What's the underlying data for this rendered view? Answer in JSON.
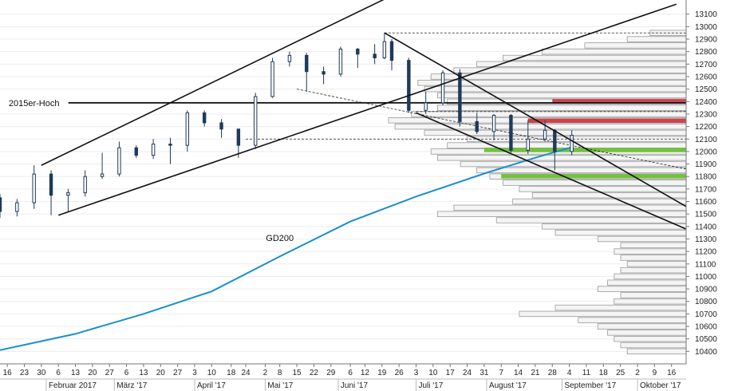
{
  "chart_data": {
    "type": "candlestick",
    "y_axis": {
      "min": 10300,
      "max": 13175,
      "ticks": [
        10400,
        10500,
        10600,
        10700,
        10800,
        10900,
        11000,
        11100,
        11200,
        11300,
        11400,
        11500,
        11600,
        11700,
        11800,
        11900,
        12000,
        12100,
        12200,
        12300,
        12400,
        12500,
        12600,
        12700,
        12800,
        12900,
        13000,
        13100
      ],
      "position": "right"
    },
    "x_axis": {
      "start": "2017-01-13",
      "end": "2017-10-22",
      "day_ticks": [
        {
          "date": "2017-01-16",
          "label": "16"
        },
        {
          "date": "2017-01-23",
          "label": "23"
        },
        {
          "date": "2017-01-30",
          "label": "30"
        },
        {
          "date": "2017-02-06",
          "label": "6"
        },
        {
          "date": "2017-02-13",
          "label": "13"
        },
        {
          "date": "2017-02-20",
          "label": "20"
        },
        {
          "date": "2017-02-27",
          "label": "27"
        },
        {
          "date": "2017-03-06",
          "label": "6"
        },
        {
          "date": "2017-03-13",
          "label": "13"
        },
        {
          "date": "2017-03-20",
          "label": "20"
        },
        {
          "date": "2017-03-27",
          "label": "27"
        },
        {
          "date": "2017-04-03",
          "label": "3"
        },
        {
          "date": "2017-04-10",
          "label": "10"
        },
        {
          "date": "2017-04-18",
          "label": "18"
        },
        {
          "date": "2017-04-24",
          "label": "24"
        },
        {
          "date": "2017-05-02",
          "label": "2"
        },
        {
          "date": "2017-05-08",
          "label": "8"
        },
        {
          "date": "2017-05-15",
          "label": "15"
        },
        {
          "date": "2017-05-22",
          "label": "22"
        },
        {
          "date": "2017-05-29",
          "label": "29"
        },
        {
          "date": "2017-06-06",
          "label": "6"
        },
        {
          "date": "2017-06-12",
          "label": "12"
        },
        {
          "date": "2017-06-19",
          "label": "19"
        },
        {
          "date": "2017-06-26",
          "label": "26"
        },
        {
          "date": "2017-07-03",
          "label": "3"
        },
        {
          "date": "2017-07-10",
          "label": "10"
        },
        {
          "date": "2017-07-17",
          "label": "17"
        },
        {
          "date": "2017-07-24",
          "label": "24"
        },
        {
          "date": "2017-07-31",
          "label": "31"
        },
        {
          "date": "2017-08-07",
          "label": "7"
        },
        {
          "date": "2017-08-14",
          "label": "14"
        },
        {
          "date": "2017-08-21",
          "label": "21"
        },
        {
          "date": "2017-08-28",
          "label": "28"
        },
        {
          "date": "2017-09-04",
          "label": "4"
        },
        {
          "date": "2017-09-11",
          "label": "11"
        },
        {
          "date": "2017-09-18",
          "label": "18"
        },
        {
          "date": "2017-09-25",
          "label": "25"
        },
        {
          "date": "2017-10-02",
          "label": "2"
        },
        {
          "date": "2017-10-09",
          "label": "9"
        },
        {
          "date": "2017-10-16",
          "label": "16"
        }
      ],
      "month_labels": [
        {
          "date": "2017-02-01",
          "label": "Februar 2017"
        },
        {
          "date": "2017-03-01",
          "label": "März '17"
        },
        {
          "date": "2017-04-03",
          "label": "April '17"
        },
        {
          "date": "2017-05-02",
          "label": "Mai '17"
        },
        {
          "date": "2017-06-01",
          "label": "Juni '17"
        },
        {
          "date": "2017-07-03",
          "label": "Juli '17"
        },
        {
          "date": "2017-08-01",
          "label": "August '17"
        },
        {
          "date": "2017-09-01",
          "label": "September '17"
        },
        {
          "date": "2017-10-02",
          "label": "Oktober '17"
        }
      ]
    },
    "grid": "horizontal",
    "candles_weekly_approx": [
      {
        "date": "2017-01-13",
        "o": 11630,
        "h": 11660,
        "l": 11470,
        "c": 11520
      },
      {
        "date": "2017-01-20",
        "o": 11520,
        "h": 11620,
        "l": 11480,
        "c": 11590
      },
      {
        "date": "2017-01-27",
        "o": 11590,
        "h": 11890,
        "l": 11540,
        "c": 11820
      },
      {
        "date": "2017-02-03",
        "o": 11820,
        "h": 11850,
        "l": 11490,
        "c": 11650
      },
      {
        "date": "2017-02-10",
        "o": 11650,
        "h": 11700,
        "l": 11520,
        "c": 11670
      },
      {
        "date": "2017-02-17",
        "o": 11670,
        "h": 11850,
        "l": 11640,
        "c": 11800
      },
      {
        "date": "2017-02-24",
        "o": 11800,
        "h": 11990,
        "l": 11780,
        "c": 11820
      },
      {
        "date": "2017-03-03",
        "o": 11820,
        "h": 12080,
        "l": 11800,
        "c": 12030
      },
      {
        "date": "2017-03-10",
        "o": 12030,
        "h": 12050,
        "l": 11950,
        "c": 11970
      },
      {
        "date": "2017-03-17",
        "o": 11970,
        "h": 12100,
        "l": 11940,
        "c": 12060
      },
      {
        "date": "2017-03-24",
        "o": 12060,
        "h": 12110,
        "l": 11900,
        "c": 12050
      },
      {
        "date": "2017-03-31",
        "o": 12050,
        "h": 12330,
        "l": 12000,
        "c": 12310
      },
      {
        "date": "2017-04-07",
        "o": 12310,
        "h": 12330,
        "l": 12200,
        "c": 12230
      },
      {
        "date": "2017-04-14",
        "o": 12230,
        "h": 12260,
        "l": 12110,
        "c": 12180
      },
      {
        "date": "2017-04-21",
        "o": 12180,
        "h": 12180,
        "l": 11950,
        "c": 12050
      },
      {
        "date": "2017-04-28",
        "o": 12050,
        "h": 12470,
        "l": 12020,
        "c": 12440
      },
      {
        "date": "2017-05-05",
        "o": 12440,
        "h": 12750,
        "l": 12430,
        "c": 12720
      },
      {
        "date": "2017-05-12",
        "o": 12720,
        "h": 12800,
        "l": 12680,
        "c": 12770
      },
      {
        "date": "2017-05-19",
        "o": 12770,
        "h": 12790,
        "l": 12480,
        "c": 12640
      },
      {
        "date": "2017-05-26",
        "o": 12640,
        "h": 12680,
        "l": 12540,
        "c": 12620
      },
      {
        "date": "2017-06-02",
        "o": 12620,
        "h": 12840,
        "l": 12600,
        "c": 12820
      },
      {
        "date": "2017-06-09",
        "o": 12820,
        "h": 12830,
        "l": 12670,
        "c": 12780
      },
      {
        "date": "2017-06-16",
        "o": 12780,
        "h": 12860,
        "l": 12700,
        "c": 12750
      },
      {
        "date": "2017-06-20",
        "o": 12750,
        "h": 12950,
        "l": 12740,
        "c": 12880
      },
      {
        "date": "2017-06-23",
        "o": 12880,
        "h": 12900,
        "l": 12650,
        "c": 12730
      },
      {
        "date": "2017-06-30",
        "o": 12730,
        "h": 12750,
        "l": 12310,
        "c": 12330
      },
      {
        "date": "2017-07-07",
        "o": 12330,
        "h": 12480,
        "l": 12300,
        "c": 12390
      },
      {
        "date": "2017-07-14",
        "o": 12390,
        "h": 12650,
        "l": 12370,
        "c": 12630
      },
      {
        "date": "2017-07-21",
        "o": 12630,
        "h": 12660,
        "l": 12200,
        "c": 12240
      },
      {
        "date": "2017-07-28",
        "o": 12240,
        "h": 12310,
        "l": 12140,
        "c": 12160
      },
      {
        "date": "2017-08-04",
        "o": 12160,
        "h": 12300,
        "l": 12090,
        "c": 12290
      },
      {
        "date": "2017-08-11",
        "o": 12290,
        "h": 12300,
        "l": 11990,
        "c": 12010
      },
      {
        "date": "2017-08-18",
        "o": 12010,
        "h": 12250,
        "l": 11980,
        "c": 12100
      },
      {
        "date": "2017-08-25",
        "o": 12100,
        "h": 12250,
        "l": 12080,
        "c": 12170
      },
      {
        "date": "2017-08-29",
        "o": 12170,
        "h": 12180,
        "l": 11850,
        "c": 12000
      },
      {
        "date": "2017-09-05",
        "o": 12000,
        "h": 12170,
        "l": 11970,
        "c": 12130
      }
    ],
    "gd200": {
      "label": "GD200",
      "color": "#1a8fcf",
      "points": [
        {
          "date": "2017-01-13",
          "v": 10410
        },
        {
          "date": "2017-02-13",
          "v": 10540
        },
        {
          "date": "2017-03-13",
          "v": 10700
        },
        {
          "date": "2017-04-10",
          "v": 10880
        },
        {
          "date": "2017-05-08",
          "v": 11160
        },
        {
          "date": "2017-06-06",
          "v": 11440
        },
        {
          "date": "2017-07-03",
          "v": 11640
        },
        {
          "date": "2017-08-01",
          "v": 11830
        },
        {
          "date": "2017-08-21",
          "v": 11950
        },
        {
          "date": "2017-09-05",
          "v": 12035
        }
      ]
    },
    "horizontal_lines": [
      {
        "label": "2015er-Hoch",
        "value": 12390,
        "style": "solid",
        "color": "#111111"
      }
    ],
    "trend_lines": [
      {
        "from": {
          "date": "2017-01-30",
          "v": 11890
        },
        "to": {
          "date": "2017-06-20",
          "v": 13220
        },
        "color": "#111111"
      },
      {
        "from": {
          "date": "2017-02-06",
          "v": 11490
        },
        "to": {
          "date": "2017-10-18",
          "v": 13180
        },
        "color": "#111111"
      },
      {
        "from": {
          "date": "2017-06-20",
          "v": 12950
        },
        "to": {
          "date": "2017-10-22",
          "v": 11560
        },
        "color": "#111111"
      },
      {
        "from": {
          "date": "2017-07-03",
          "v": 12310
        },
        "to": {
          "date": "2017-10-22",
          "v": 11380
        },
        "color": "#111111"
      }
    ],
    "dashed_lines": [
      {
        "from": {
          "date": "2017-06-20",
          "v": 12950
        },
        "to": {
          "date": "2017-10-22",
          "v": 12950
        }
      },
      {
        "from": {
          "date": "2017-05-15",
          "v": 12500
        },
        "to": {
          "date": "2017-10-22",
          "v": 11860
        }
      },
      {
        "from": {
          "date": "2017-04-24",
          "v": 12100
        },
        "to": {
          "date": "2017-10-22",
          "v": 12100
        }
      },
      {
        "from": {
          "date": "2017-07-03",
          "v": 12320
        },
        "to": {
          "date": "2017-10-22",
          "v": 12320
        }
      }
    ],
    "zones": [
      {
        "name": "resistance-1",
        "color": "#c9454d",
        "low": 12385,
        "high": 12420,
        "start": "2017-08-28"
      },
      {
        "name": "resistance-2",
        "color": "#c9454d",
        "low": 12230,
        "high": 12265,
        "start": "2017-08-18"
      },
      {
        "name": "support-1",
        "color": "#74c040",
        "low": 11995,
        "high": 12030,
        "start": "2017-07-31"
      },
      {
        "name": "support-2",
        "color": "#74c040",
        "low": 11785,
        "high": 11820,
        "start": "2017-08-07"
      }
    ],
    "volume_profile": [
      {
        "price": 10400,
        "vol": 0.18
      },
      {
        "price": 10450,
        "vol": 0.2
      },
      {
        "price": 10500,
        "vol": 0.22
      },
      {
        "price": 10550,
        "vol": 0.24
      },
      {
        "price": 10600,
        "vol": 0.27
      },
      {
        "price": 10650,
        "vol": 0.33
      },
      {
        "price": 10700,
        "vol": 0.51
      },
      {
        "price": 10750,
        "vol": 0.4
      },
      {
        "price": 10800,
        "vol": 0.22
      },
      {
        "price": 10850,
        "vol": 0.2
      },
      {
        "price": 10900,
        "vol": 0.27
      },
      {
        "price": 10950,
        "vol": 0.24
      },
      {
        "price": 11000,
        "vol": 0.22
      },
      {
        "price": 11050,
        "vol": 0.2
      },
      {
        "price": 11100,
        "vol": 0.18
      },
      {
        "price": 11150,
        "vol": 0.2
      },
      {
        "price": 11200,
        "vol": 0.22
      },
      {
        "price": 11250,
        "vol": 0.2
      },
      {
        "price": 11300,
        "vol": 0.27
      },
      {
        "price": 11350,
        "vol": 0.4
      },
      {
        "price": 11400,
        "vol": 0.44
      },
      {
        "price": 11450,
        "vol": 0.58
      },
      {
        "price": 11500,
        "vol": 0.76
      },
      {
        "price": 11550,
        "vol": 0.71
      },
      {
        "price": 11600,
        "vol": 0.53
      },
      {
        "price": 11650,
        "vol": 0.47
      },
      {
        "price": 11700,
        "vol": 0.51
      },
      {
        "price": 11750,
        "vol": 0.56
      },
      {
        "price": 11800,
        "vol": 0.6
      },
      {
        "price": 11850,
        "vol": 0.64
      },
      {
        "price": 11900,
        "vol": 0.69
      },
      {
        "price": 11950,
        "vol": 0.76
      },
      {
        "price": 12000,
        "vol": 0.78
      },
      {
        "price": 12050,
        "vol": 0.73
      },
      {
        "price": 12100,
        "vol": 0.67
      },
      {
        "price": 12150,
        "vol": 0.8
      },
      {
        "price": 12200,
        "vol": 0.89
      },
      {
        "price": 12250,
        "vol": 0.91
      },
      {
        "price": 12300,
        "vol": 0.84
      },
      {
        "price": 12350,
        "vol": 0.76
      },
      {
        "price": 12400,
        "vol": 0.73
      },
      {
        "price": 12450,
        "vol": 0.76
      },
      {
        "price": 12500,
        "vol": 0.8
      },
      {
        "price": 12550,
        "vol": 0.82
      },
      {
        "price": 12600,
        "vol": 0.78
      },
      {
        "price": 12650,
        "vol": 0.71
      },
      {
        "price": 12700,
        "vol": 0.64
      },
      {
        "price": 12750,
        "vol": 0.56
      },
      {
        "price": 12800,
        "vol": 0.44
      },
      {
        "price": 12850,
        "vol": 0.31
      },
      {
        "price": 12900,
        "vol": 0.18
      },
      {
        "price": 12950,
        "vol": 0.11
      }
    ],
    "annotations": [
      {
        "name": "high-2015-label",
        "text": "2015er-Hoch",
        "date": "2017-01-27",
        "v": 12390
      },
      {
        "name": "gd200-label",
        "text": "GD200",
        "date": "2017-05-08",
        "v": 11310
      }
    ]
  }
}
